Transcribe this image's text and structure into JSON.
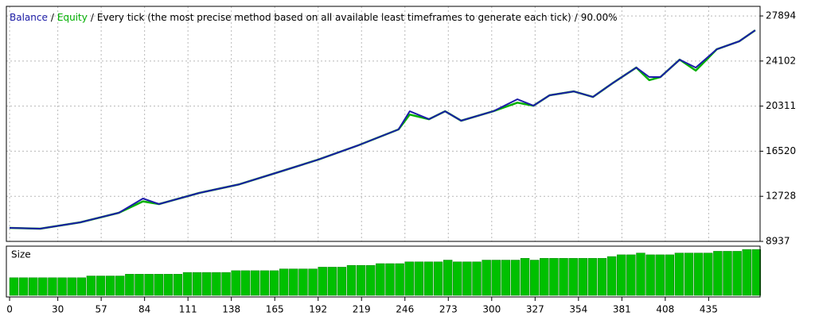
{
  "chart_data": [
    {
      "type": "line",
      "title": "Every tick (the most precise method based on all available least timeframes to generate each tick)",
      "separator": "/",
      "quality": "90.00%",
      "x": [
        0,
        19,
        44,
        68,
        83,
        93,
        118,
        143,
        167,
        192,
        217,
        242,
        249,
        261,
        271,
        281,
        301,
        316,
        326,
        336,
        351,
        363,
        375,
        390,
        398,
        405,
        417,
        427,
        440,
        454,
        464
      ],
      "series": [
        {
          "name": "Equity",
          "color": "#00b000",
          "values": [
            10072,
            10005,
            10540,
            11340,
            12300,
            12074,
            13010,
            13740,
            14745,
            15810,
            17015,
            18350,
            19600,
            19215,
            19880,
            19085,
            19880,
            20600,
            20350,
            21220,
            21550,
            21085,
            22220,
            23555,
            22500,
            22755,
            24220,
            23300,
            25090,
            25760,
            26690
          ]
        },
        {
          "name": "Balance",
          "color": "#1c1ca8",
          "values": [
            10072,
            10005,
            10540,
            11340,
            12540,
            12074,
            13010,
            13740,
            14745,
            15810,
            17015,
            18350,
            19880,
            19215,
            19880,
            19085,
            19880,
            20885,
            20350,
            21220,
            21550,
            21085,
            22220,
            23555,
            22755,
            22755,
            24220,
            23555,
            25090,
            25760,
            26690
          ]
        }
      ],
      "xlim": [
        -2,
        467
      ],
      "ylim": [
        8937,
        28700
      ],
      "yticks": [
        8937,
        12728,
        16520,
        20311,
        24102,
        27894
      ],
      "grid": true
    },
    {
      "type": "bar",
      "title": "Size",
      "color": "#00c000",
      "x": [
        0,
        6,
        12,
        18,
        24,
        30,
        36,
        42,
        48,
        54,
        60,
        66,
        72,
        78,
        84,
        90,
        96,
        102,
        108,
        114,
        120,
        126,
        132,
        138,
        144,
        150,
        156,
        162,
        168,
        174,
        180,
        186,
        192,
        198,
        204,
        210,
        216,
        222,
        228,
        234,
        240,
        246,
        252,
        258,
        264,
        270,
        276,
        282,
        288,
        294,
        300,
        306,
        312,
        318,
        324,
        330,
        336,
        342,
        348,
        354,
        360,
        366,
        372,
        378,
        384,
        390,
        396,
        402,
        408,
        414,
        420,
        426,
        432,
        438,
        444,
        450,
        456,
        462
      ],
      "values": [
        0.1,
        0.1,
        0.1,
        0.1,
        0.1,
        0.1,
        0.1,
        0.1,
        0.11,
        0.11,
        0.11,
        0.11,
        0.12,
        0.12,
        0.12,
        0.12,
        0.12,
        0.12,
        0.13,
        0.13,
        0.13,
        0.13,
        0.13,
        0.14,
        0.14,
        0.14,
        0.14,
        0.14,
        0.15,
        0.15,
        0.15,
        0.15,
        0.16,
        0.16,
        0.16,
        0.17,
        0.17,
        0.17,
        0.18,
        0.18,
        0.18,
        0.19,
        0.19,
        0.19,
        0.19,
        0.2,
        0.19,
        0.19,
        0.19,
        0.2,
        0.2,
        0.2,
        0.2,
        0.21,
        0.2,
        0.21,
        0.21,
        0.21,
        0.21,
        0.21,
        0.21,
        0.21,
        0.22,
        0.23,
        0.23,
        0.24,
        0.23,
        0.23,
        0.23,
        0.24,
        0.24,
        0.24,
        0.24,
        0.25,
        0.25,
        0.25,
        0.26,
        0.26
      ],
      "xlim": [
        -2,
        467
      ],
      "ylim": [
        0,
        0.27
      ],
      "xticks": [
        0,
        30,
        57,
        84,
        111,
        138,
        165,
        192,
        219,
        246,
        273,
        300,
        327,
        354,
        381,
        408,
        435
      ]
    }
  ]
}
